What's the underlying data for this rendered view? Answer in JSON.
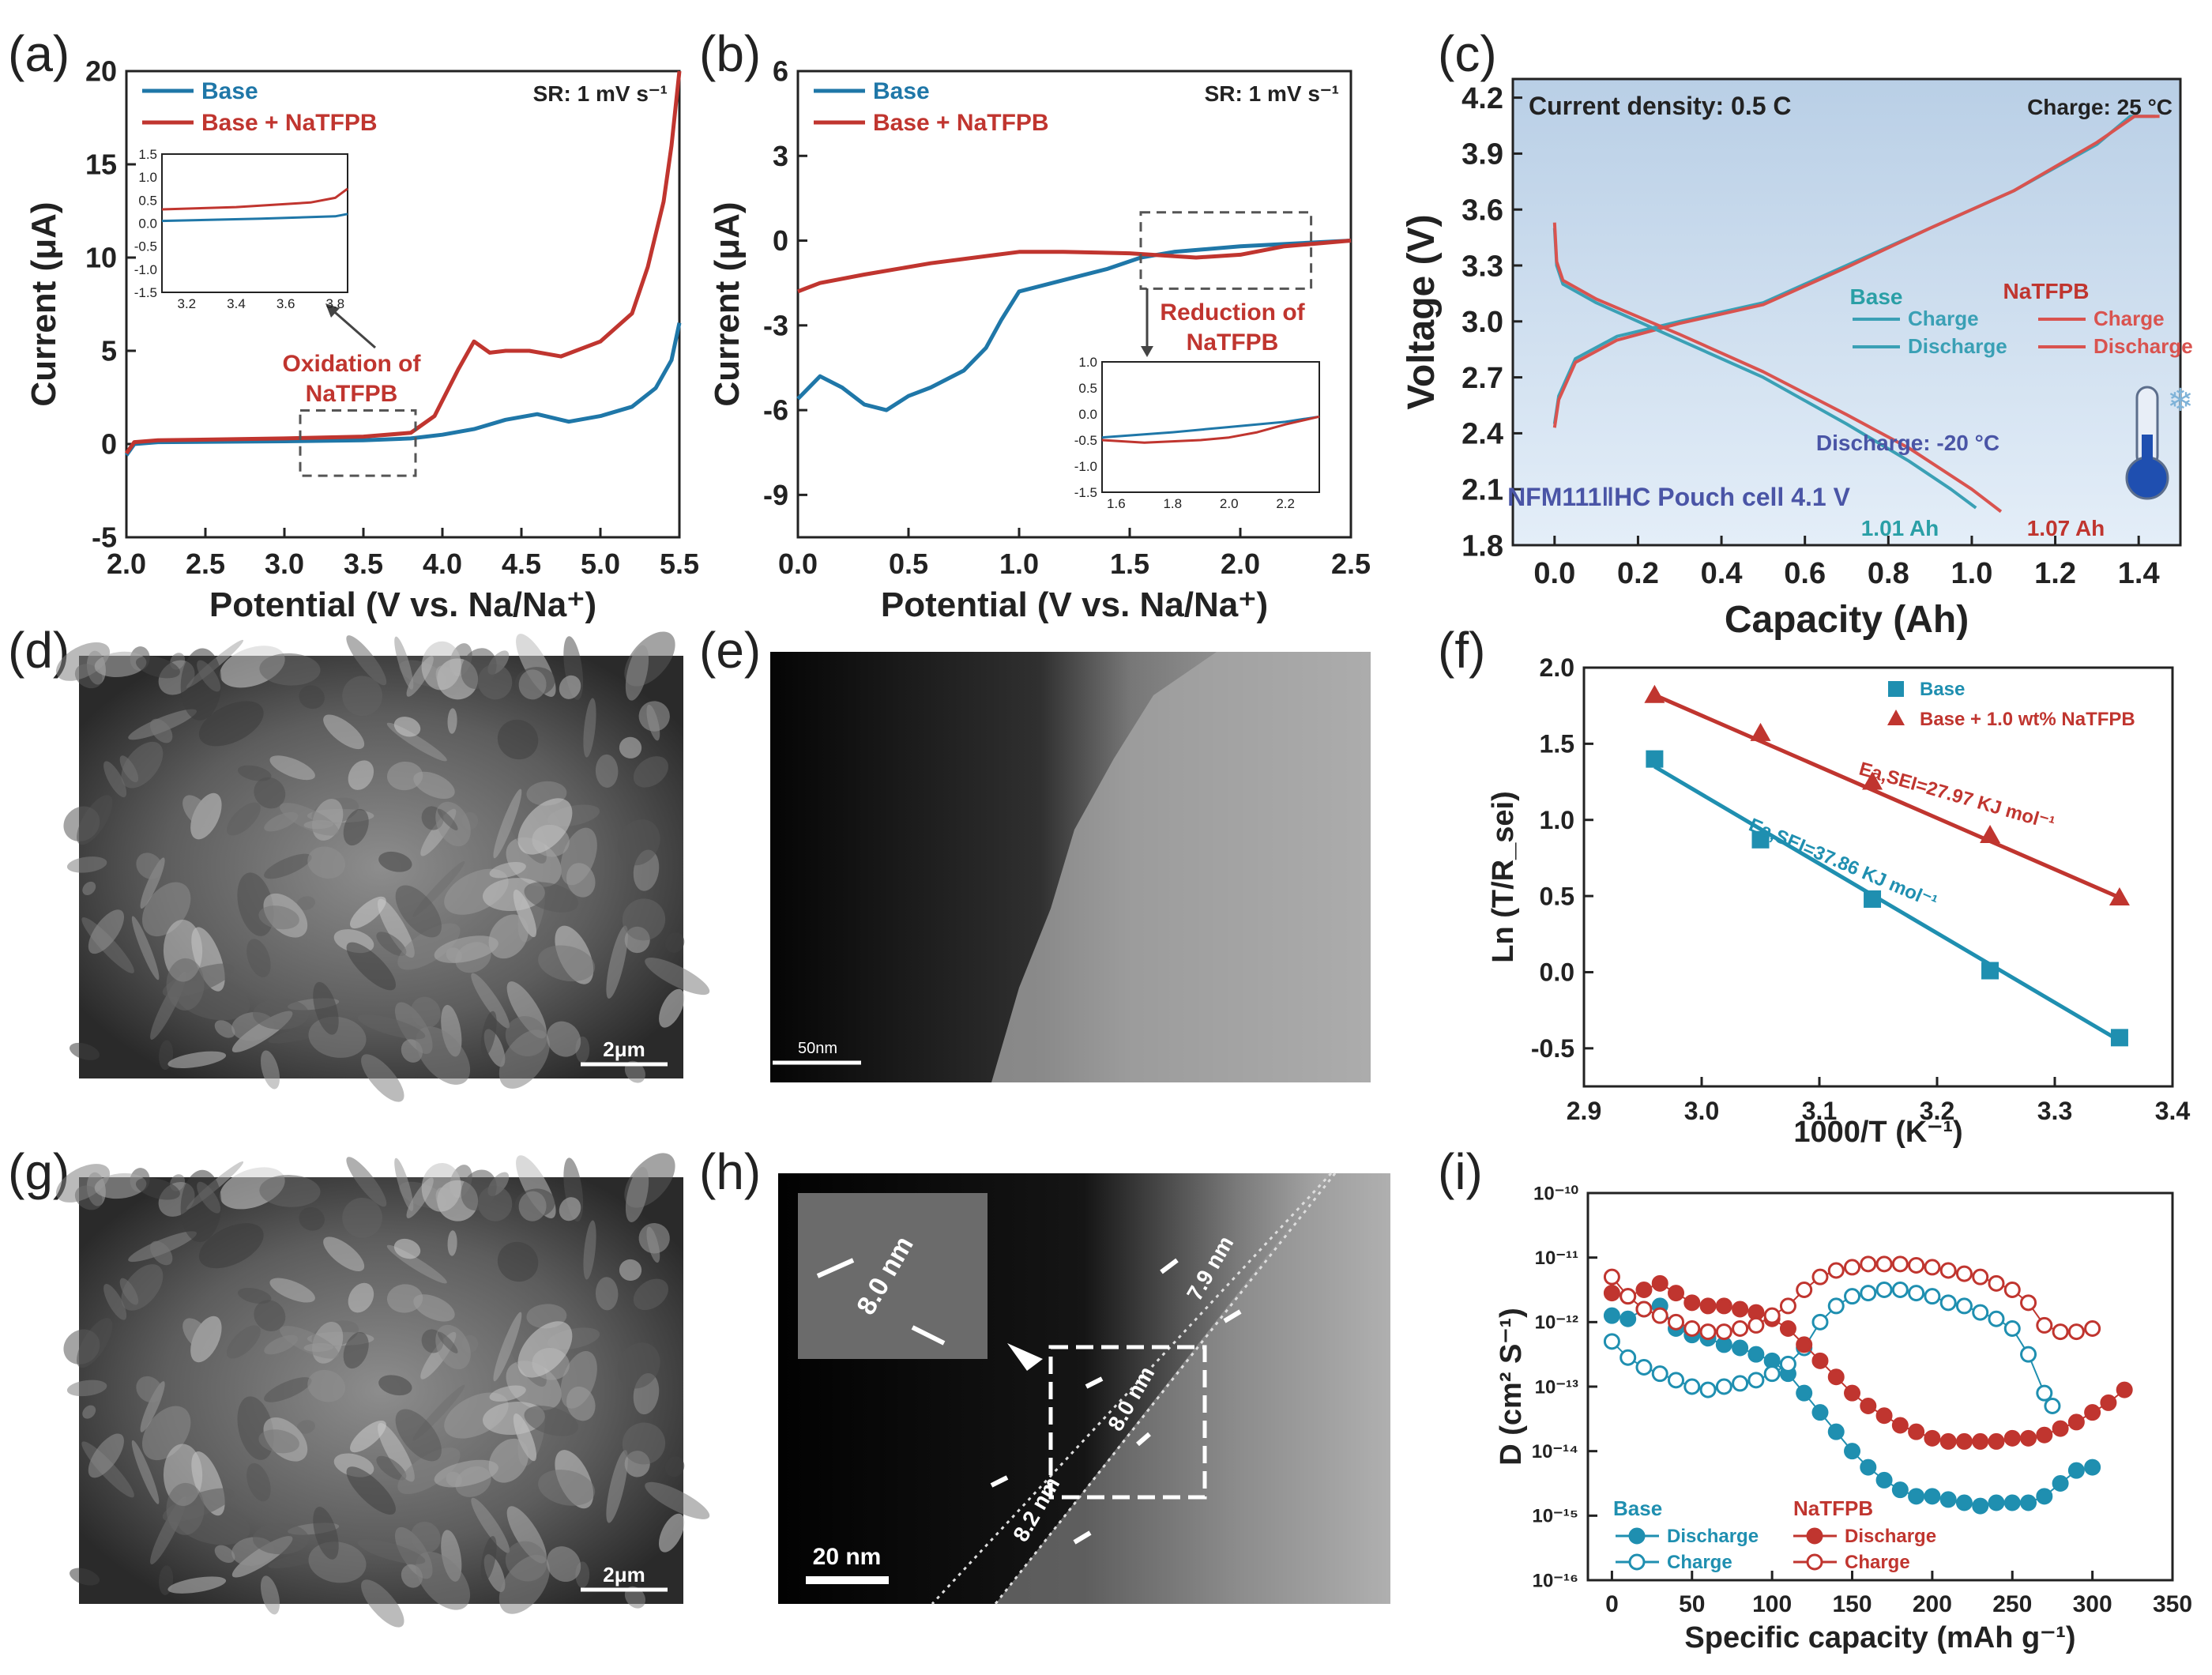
{
  "colors": {
    "base": "#1f77a8",
    "natfpb": "#c0352f",
    "text": "#222222",
    "annot": "#4a55a6",
    "teal": "#2aa0a8"
  },
  "panel_labels": [
    "(a)",
    "(b)",
    "(c)",
    "(d)",
    "(e)",
    "(f)",
    "(g)",
    "(h)",
    "(i)"
  ],
  "chart_data": [
    {
      "id": "a",
      "type": "line",
      "xlabel": "Potential (V vs. Na/Na⁺)",
      "ylabel": "Current (μA)",
      "xlim": [
        2.0,
        5.5
      ],
      "ylim": [
        -5,
        20
      ],
      "xticks": [
        "2.0",
        "2.5",
        "3.0",
        "3.5",
        "4.0",
        "4.5",
        "5.0",
        "5.5"
      ],
      "yticks": [
        "-5",
        "0",
        "5",
        "10",
        "15",
        "20"
      ],
      "annotation": "SR: 1 mV s⁻¹",
      "callout": [
        "Oxidation of",
        "NaTFPB"
      ],
      "series": [
        {
          "name": "Base",
          "color": "#1f77a8",
          "x": [
            2.0,
            2.05,
            2.2,
            3.0,
            3.5,
            3.8,
            4.0,
            4.2,
            4.4,
            4.6,
            4.8,
            5.0,
            5.2,
            5.35,
            5.45,
            5.5
          ],
          "y": [
            -0.6,
            0.0,
            0.1,
            0.15,
            0.2,
            0.3,
            0.5,
            0.8,
            1.3,
            1.6,
            1.2,
            1.5,
            2.0,
            3.0,
            4.5,
            6.5
          ]
        },
        {
          "name": "Base + NaTFPB",
          "color": "#c0352f",
          "x": [
            2.0,
            2.05,
            2.2,
            3.0,
            3.5,
            3.8,
            3.95,
            4.1,
            4.2,
            4.3,
            4.4,
            4.55,
            4.75,
            5.0,
            5.2,
            5.3,
            5.4,
            5.45,
            5.5
          ],
          "y": [
            -0.5,
            0.1,
            0.2,
            0.3,
            0.4,
            0.6,
            1.5,
            4.0,
            5.5,
            4.9,
            5.0,
            5.0,
            4.7,
            5.5,
            7.0,
            9.5,
            13.0,
            16.0,
            20.0
          ]
        }
      ],
      "inset": {
        "xlim": [
          3.1,
          3.85
        ],
        "ylim": [
          -1.5,
          1.5
        ],
        "xticks": [
          "3.2",
          "3.4",
          "3.6",
          "3.8"
        ],
        "yticks": [
          "1.5",
          "1.0",
          "0.5",
          "0.0",
          "-0.5",
          "-1.0",
          "-1.5"
        ],
        "series": [
          {
            "x": [
              3.1,
              3.5,
              3.8,
              3.85
            ],
            "y": [
              0.05,
              0.1,
              0.15,
              0.2
            ]
          },
          {
            "x": [
              3.1,
              3.4,
              3.7,
              3.8,
              3.85
            ],
            "y": [
              0.3,
              0.35,
              0.45,
              0.55,
              0.75
            ]
          }
        ]
      }
    },
    {
      "id": "b",
      "type": "line",
      "xlabel": "Potential (V vs. Na/Na⁺)",
      "ylabel": "Current (μA)",
      "xlim": [
        0.0,
        2.5
      ],
      "ylim": [
        -10.5,
        6
      ],
      "xticks": [
        "0.0",
        "0.5",
        "1.0",
        "1.5",
        "2.0",
        "2.5"
      ],
      "yticks": [
        "-9",
        "-6",
        "-3",
        "0",
        "3",
        "6"
      ],
      "annotation": "SR: 1 mV s⁻¹",
      "callout": [
        "Reduction of",
        "NaTFPB"
      ],
      "series": [
        {
          "name": "Base",
          "color": "#1f77a8",
          "x": [
            0.0,
            0.1,
            0.2,
            0.3,
            0.4,
            0.5,
            0.6,
            0.75,
            0.85,
            0.92,
            1.0,
            1.2,
            1.4,
            1.55,
            1.7,
            2.0,
            2.5
          ],
          "y": [
            -5.6,
            -4.8,
            -5.2,
            -5.8,
            -6.0,
            -5.5,
            -5.2,
            -4.6,
            -3.8,
            -2.8,
            -1.8,
            -1.4,
            -1.0,
            -0.6,
            -0.4,
            -0.2,
            0.0
          ]
        },
        {
          "name": "Base + NaTFPB",
          "color": "#c0352f",
          "x": [
            0.0,
            0.1,
            0.3,
            0.6,
            0.9,
            1.0,
            1.2,
            1.5,
            1.8,
            2.0,
            2.2,
            2.5
          ],
          "y": [
            -1.8,
            -1.5,
            -1.2,
            -0.8,
            -0.5,
            -0.4,
            -0.4,
            -0.45,
            -0.6,
            -0.5,
            -0.2,
            0.0
          ]
        }
      ],
      "inset": {
        "xlim": [
          1.55,
          2.32
        ],
        "ylim": [
          -1.5,
          1.0
        ],
        "xticks": [
          "1.6",
          "1.8",
          "2.0",
          "2.2"
        ],
        "yticks": [
          "1.0",
          "0.5",
          "0.0",
          "-0.5",
          "-1.0",
          "-1.5"
        ],
        "series": [
          {
            "x": [
              1.55,
              1.8,
              2.0,
              2.2,
              2.32
            ],
            "y": [
              -0.45,
              -0.35,
              -0.25,
              -0.15,
              -0.05
            ]
          },
          {
            "x": [
              1.55,
              1.7,
              1.9,
              2.0,
              2.1,
              2.2,
              2.32
            ],
            "y": [
              -0.5,
              -0.55,
              -0.5,
              -0.45,
              -0.35,
              -0.2,
              -0.05
            ]
          }
        ]
      }
    },
    {
      "id": "c",
      "type": "line",
      "xlabel": "Capacity (Ah)",
      "ylabel": "Voltage (V)",
      "xlim": [
        -0.1,
        1.5
      ],
      "ylim": [
        1.8,
        4.3
      ],
      "xticks": [
        "0.0",
        "0.2",
        "0.4",
        "0.6",
        "0.8",
        "1.0",
        "1.2",
        "1.4"
      ],
      "yticks": [
        "1.8",
        "2.1",
        "2.4",
        "2.7",
        "3.0",
        "3.3",
        "3.6",
        "3.9",
        "4.2"
      ],
      "text": {
        "current": "Current density: 0.5 C",
        "charge": "Charge: 25 °C",
        "discharge": "Discharge: -20 °C",
        "cell": "NFM111‖HC Pouch cell 4.1 V",
        "cap_base": "1.01 Ah",
        "cap_natfpb": "1.07 Ah"
      },
      "legend": {
        "base": "Base",
        "natfpb": "NaTFPB",
        "charge": "Charge",
        "discharge": "Discharge"
      },
      "series": [
        {
          "name": "Base Charge",
          "color": "#3aa0b5",
          "x": [
            0.0,
            0.01,
            0.05,
            0.15,
            0.3,
            0.5,
            0.7,
            0.9,
            1.1,
            1.3,
            1.38,
            1.44
          ],
          "y": [
            2.45,
            2.6,
            2.8,
            2.92,
            3.0,
            3.1,
            3.3,
            3.5,
            3.7,
            3.95,
            4.1,
            4.1
          ]
        },
        {
          "name": "NaTFPB Charge",
          "color": "#d9534f",
          "x": [
            0.0,
            0.01,
            0.05,
            0.15,
            0.3,
            0.5,
            0.7,
            0.9,
            1.1,
            1.3,
            1.39,
            1.45
          ],
          "y": [
            2.43,
            2.58,
            2.78,
            2.9,
            2.99,
            3.09,
            3.29,
            3.5,
            3.7,
            3.96,
            4.1,
            4.1
          ]
        },
        {
          "name": "Base Discharge",
          "color": "#3aa0b5",
          "x": [
            0.0,
            0.005,
            0.02,
            0.1,
            0.3,
            0.5,
            0.7,
            0.85,
            0.95,
            1.01
          ],
          "y": [
            3.5,
            3.3,
            3.2,
            3.1,
            2.9,
            2.7,
            2.45,
            2.25,
            2.1,
            2.0
          ]
        },
        {
          "name": "NaTFPB Discharge",
          "color": "#d9534f",
          "x": [
            0.0,
            0.005,
            0.02,
            0.1,
            0.3,
            0.5,
            0.7,
            0.85,
            1.0,
            1.07
          ],
          "y": [
            3.53,
            3.32,
            3.22,
            3.12,
            2.93,
            2.73,
            2.5,
            2.32,
            2.1,
            1.98
          ]
        }
      ]
    },
    {
      "id": "f",
      "type": "scatter",
      "xlabel": "1000/T (K⁻¹)",
      "ylabel": "Ln (T/R_sei)",
      "xlim": [
        2.9,
        3.4
      ],
      "ylim": [
        -0.75,
        2.0
      ],
      "xticks": [
        "2.9",
        "3.0",
        "3.1",
        "3.2",
        "3.3",
        "3.4"
      ],
      "yticks": [
        "-0.5",
        "0.0",
        "0.5",
        "1.0",
        "1.5",
        "2.0"
      ],
      "legend": {
        "base": "Base",
        "natfpb": "Base + 1.0 wt% NaTFPB"
      },
      "fit_labels": {
        "natfpb": "Ea,SEI=27.97 KJ mol⁻¹",
        "base": "Ea,SEI=37.86 KJ mol⁻¹"
      },
      "series": [
        {
          "name": "Base",
          "color": "#1f8fb0",
          "marker": "square",
          "x": [
            2.96,
            3.05,
            3.145,
            3.245,
            3.355
          ],
          "y": [
            1.4,
            0.87,
            0.48,
            0.01,
            -0.43
          ],
          "fit": [
            [
              2.96,
              1.35
            ],
            [
              3.355,
              -0.45
            ]
          ]
        },
        {
          "name": "Base + 1.0 wt% NaTFPB",
          "color": "#c0352f",
          "marker": "triangle",
          "x": [
            2.96,
            3.05,
            3.145,
            3.245,
            3.355
          ],
          "y": [
            1.82,
            1.57,
            1.25,
            0.9,
            0.49
          ],
          "fit": [
            [
              2.96,
              1.82
            ],
            [
              3.355,
              0.49
            ]
          ]
        }
      ]
    },
    {
      "id": "i",
      "type": "scatter",
      "xlabel": "Specific capacity (mAh g⁻¹)",
      "ylabel": "D (cm² S⁻¹)",
      "xlim": [
        -15,
        350
      ],
      "ylim_log": [
        -16,
        -10
      ],
      "xticks": [
        "0",
        "50",
        "100",
        "150",
        "200",
        "250",
        "300",
        "350"
      ],
      "yticks": [
        "10⁻¹⁶",
        "10⁻¹⁵",
        "10⁻¹⁴",
        "10⁻¹³",
        "10⁻¹²",
        "10⁻¹¹",
        "10⁻¹⁰"
      ],
      "legend": {
        "base": "Base",
        "natfpb": "NaTFPB",
        "discharge": "Discharge",
        "charge": "Charge"
      },
      "series": [
        {
          "name": "Base Discharge",
          "color": "#1f8fb0",
          "filled": true,
          "x": [
            0,
            10,
            20,
            30,
            40,
            50,
            60,
            70,
            80,
            90,
            100,
            110,
            120,
            130,
            140,
            150,
            160,
            170,
            180,
            190,
            200,
            210,
            220,
            230,
            240,
            250,
            260,
            270,
            280,
            290,
            300
          ],
          "logy": [
            -11.9,
            -11.95,
            -11.8,
            -11.75,
            -12.1,
            -12.2,
            -12.25,
            -12.35,
            -12.4,
            -12.5,
            -12.6,
            -12.8,
            -13.1,
            -13.4,
            -13.7,
            -14.0,
            -14.25,
            -14.45,
            -14.6,
            -14.7,
            -14.7,
            -14.75,
            -14.8,
            -14.85,
            -14.8,
            -14.8,
            -14.8,
            -14.7,
            -14.5,
            -14.3,
            -14.25
          ]
        },
        {
          "name": "Base Charge",
          "color": "#1f8fb0",
          "filled": false,
          "x": [
            0,
            10,
            20,
            30,
            40,
            50,
            60,
            70,
            80,
            90,
            100,
            110,
            120,
            130,
            140,
            150,
            160,
            170,
            180,
            190,
            200,
            210,
            220,
            230,
            240,
            250,
            260,
            270,
            275
          ],
          "logy": [
            -12.3,
            -12.55,
            -12.7,
            -12.8,
            -12.9,
            -13.0,
            -13.05,
            -13.0,
            -12.95,
            -12.9,
            -12.8,
            -12.65,
            -12.4,
            -12.0,
            -11.75,
            -11.6,
            -11.55,
            -11.5,
            -11.5,
            -11.55,
            -11.6,
            -11.7,
            -11.75,
            -11.85,
            -11.95,
            -12.1,
            -12.5,
            -13.1,
            -13.3
          ]
        },
        {
          "name": "NaTFPB Discharge",
          "color": "#c0352f",
          "filled": true,
          "x": [
            0,
            10,
            20,
            30,
            40,
            50,
            60,
            70,
            80,
            90,
            100,
            110,
            120,
            130,
            140,
            150,
            160,
            170,
            180,
            190,
            200,
            210,
            220,
            230,
            240,
            250,
            260,
            270,
            280,
            290,
            300,
            310,
            320
          ],
          "logy": [
            -11.55,
            -11.6,
            -11.5,
            -11.4,
            -11.55,
            -11.7,
            -11.75,
            -11.75,
            -11.8,
            -11.85,
            -11.95,
            -12.1,
            -12.35,
            -12.6,
            -12.85,
            -13.1,
            -13.3,
            -13.45,
            -13.6,
            -13.7,
            -13.8,
            -13.85,
            -13.85,
            -13.85,
            -13.85,
            -13.8,
            -13.8,
            -13.75,
            -13.65,
            -13.55,
            -13.4,
            -13.25,
            -13.05
          ]
        },
        {
          "name": "NaTFPB Charge",
          "color": "#c0352f",
          "filled": false,
          "x": [
            0,
            10,
            20,
            30,
            40,
            50,
            60,
            70,
            80,
            90,
            100,
            110,
            120,
            130,
            140,
            150,
            160,
            170,
            180,
            190,
            200,
            210,
            220,
            230,
            240,
            250,
            260,
            270,
            280,
            290,
            300
          ],
          "logy": [
            -11.3,
            -11.6,
            -11.8,
            -11.9,
            -12.0,
            -12.1,
            -12.15,
            -12.15,
            -12.1,
            -12.05,
            -11.9,
            -11.75,
            -11.5,
            -11.3,
            -11.2,
            -11.15,
            -11.1,
            -11.1,
            -11.1,
            -11.12,
            -11.15,
            -11.2,
            -11.25,
            -11.3,
            -11.4,
            -11.5,
            -11.7,
            -12.05,
            -12.15,
            -12.15,
            -12.1
          ]
        }
      ]
    }
  ],
  "micrographs": {
    "d": {
      "scale": "2μm"
    },
    "e": {
      "scale": "50nm"
    },
    "g": {
      "scale": "2μm"
    },
    "h": {
      "scale": "20 nm",
      "thickness": [
        "8.0 nm",
        "7.9 nm",
        "8.0 nm",
        "8.2 nm"
      ]
    }
  }
}
